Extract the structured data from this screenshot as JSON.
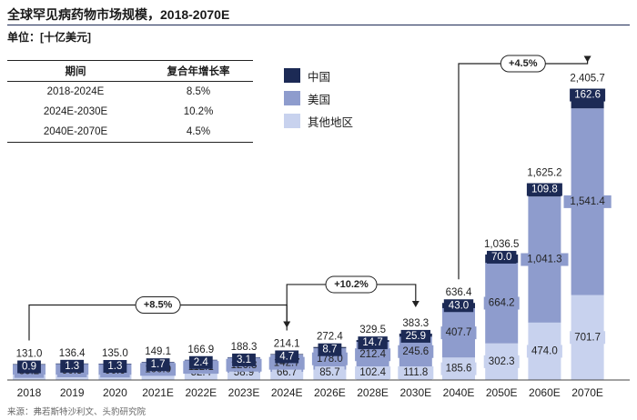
{
  "header": {
    "title": "全球罕见病药物市场规模，2018-2070E",
    "unit": "单位：[十亿美元]"
  },
  "cagr_table": {
    "headers": [
      "期间",
      "复合年增长率"
    ],
    "rows": [
      [
        "2018-2024E",
        "8.5%"
      ],
      [
        "2024E-2030E",
        "10.2%"
      ],
      [
        "2040E-2070E",
        "4.5%"
      ]
    ]
  },
  "legend": [
    {
      "name": "中国",
      "color": "#1c2a55"
    },
    {
      "name": "美国",
      "color": "#8e9ccd"
    },
    {
      "name": "其他地区",
      "color": "#c8d2ee"
    }
  ],
  "source": "来源：弗若斯特沙利文、头豹研究院",
  "chart_data": {
    "type": "stacked-bar",
    "categories": [
      "2018",
      "2019",
      "2020",
      "2021E",
      "2022E",
      "2023E",
      "2024E",
      "2026E",
      "2028E",
      "2030E",
      "2040E",
      "2050E",
      "2060E",
      "2070E"
    ],
    "series": [
      {
        "name": "其他地区",
        "color": "#c8d2ee",
        "values": [
          44.9,
          44.6,
          43.1,
          47.4,
          52.4,
          58.9,
          66.7,
          85.7,
          102.4,
          111.8,
          185.6,
          302.3,
          474.0,
          701.7
        ],
        "labels": [
          "44.9",
          "44.6",
          "43.1",
          "47.4",
          "52.4",
          "58.9",
          "66.7",
          "85.7",
          "102.4",
          "111.8",
          "185.6",
          "302.3",
          "474.0",
          "701.7"
        ]
      },
      {
        "name": "美国",
        "color": "#8e9ccd",
        "values": [
          85.2,
          90.5,
          90.6,
          100.0,
          112.1,
          126.3,
          142.7,
          178.0,
          212.4,
          245.6,
          407.7,
          664.2,
          1041.3,
          1541.4
        ],
        "labels": [
          "85.2",
          "90.5",
          "90.6",
          "100.0",
          "112.1",
          "126.3",
          "142.7",
          "178.0",
          "212.4",
          "245.6",
          "407.7",
          "664.2",
          "1,041.3",
          "1,541.4"
        ]
      },
      {
        "name": "中国",
        "color": "#1c2a55",
        "values": [
          0.9,
          1.3,
          1.3,
          1.7,
          2.4,
          3.1,
          4.7,
          8.7,
          14.7,
          25.9,
          43.0,
          70.0,
          109.8,
          162.6
        ],
        "labels": [
          "0.9",
          "1.3",
          "1.3",
          "1.7",
          "2.4",
          "3.1",
          "4.7",
          "8.7",
          "14.7",
          "25.9",
          "43.0",
          "70.0",
          "109.8",
          "162.6"
        ]
      }
    ],
    "totals": [
      131.0,
      136.4,
      135.0,
      149.1,
      166.9,
      188.3,
      214.1,
      272.4,
      329.5,
      383.3,
      636.4,
      1036.5,
      1625.2,
      2405.7
    ],
    "total_labels": [
      "131.0",
      "136.4",
      "135.0",
      "149.1",
      "166.9",
      "188.3",
      "214.1",
      "272.4",
      "329.5",
      "383.3",
      "636.4",
      "1,036.5",
      "1,625.2",
      "2,405.7"
    ],
    "ylim": [
      0,
      2500
    ],
    "annotations": [
      {
        "label": "+8.5%",
        "from": "2018",
        "to": "2024E"
      },
      {
        "label": "+10.2%",
        "from": "2024E",
        "to": "2030E"
      },
      {
        "label": "+4.5%",
        "from": "2040E",
        "to": "2070E"
      }
    ]
  }
}
